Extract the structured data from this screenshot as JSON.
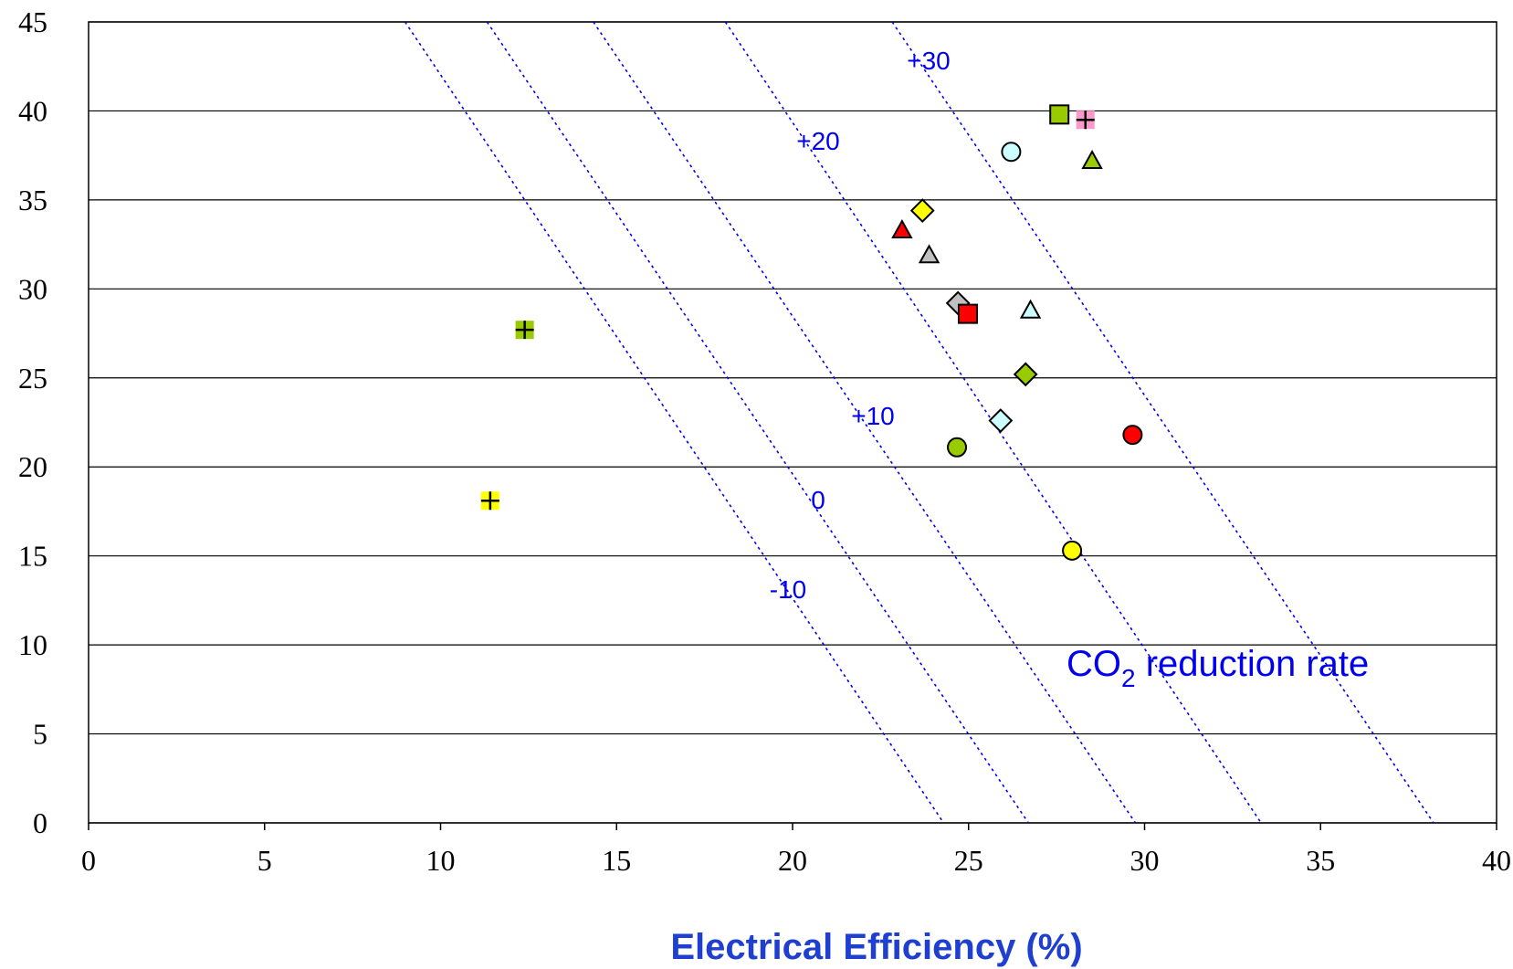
{
  "chart_data": {
    "type": "scatter",
    "x_label": "Electrical Efficiency (%)",
    "xlim": [
      0,
      40
    ],
    "xticks": [
      0,
      5,
      10,
      15,
      20,
      25,
      30,
      35,
      40
    ],
    "ylim": [
      0,
      45
    ],
    "yticks": [
      0,
      5,
      10,
      15,
      20,
      25,
      30,
      35,
      40,
      45
    ],
    "grid": true,
    "series": [
      {
        "marker": "square",
        "color": "#99cc00",
        "x": [
          27.58
        ],
        "values": [
          39.8
        ]
      },
      {
        "marker": "plus",
        "color": "#ff99cc",
        "x": [
          28.32
        ],
        "values": [
          39.5
        ]
      },
      {
        "marker": "circle",
        "color": "#ccffff",
        "x": [
          26.21
        ],
        "values": [
          37.7
        ]
      },
      {
        "marker": "triangle",
        "color": "#99cc00",
        "x": [
          28.51
        ],
        "values": [
          37.2
        ]
      },
      {
        "marker": "diamond",
        "color": "#ffff00",
        "x": [
          23.69
        ],
        "values": [
          34.4
        ]
      },
      {
        "marker": "triangle",
        "color": "#ff0000",
        "x": [
          23.11
        ],
        "values": [
          33.3
        ]
      },
      {
        "marker": "triangle",
        "color": "#c0c0c0",
        "x": [
          23.88
        ],
        "values": [
          31.9
        ]
      },
      {
        "marker": "diamond",
        "color": "#c0c0c0",
        "x": [
          24.7
        ],
        "values": [
          29.2
        ]
      },
      {
        "marker": "square",
        "color": "#ff0000",
        "x": [
          24.98
        ],
        "values": [
          28.6
        ]
      },
      {
        "marker": "triangle",
        "color": "#ccffff",
        "x": [
          26.76
        ],
        "values": [
          28.8
        ]
      },
      {
        "marker": "plus",
        "color": "#99cc00",
        "x": [
          12.39
        ],
        "values": [
          27.7
        ]
      },
      {
        "marker": "diamond",
        "color": "#99cc00",
        "x": [
          26.62
        ],
        "values": [
          25.2
        ]
      },
      {
        "marker": "diamond",
        "color": "#ccffff",
        "x": [
          25.91
        ],
        "values": [
          22.6
        ]
      },
      {
        "marker": "circle",
        "color": "#ff0000",
        "x": [
          29.66
        ],
        "values": [
          21.8
        ]
      },
      {
        "marker": "circle",
        "color": "#99cc00",
        "x": [
          24.67
        ],
        "values": [
          21.1
        ]
      },
      {
        "marker": "plus",
        "color": "#ffff00",
        "x": [
          11.41
        ],
        "values": [
          18.1
        ]
      },
      {
        "marker": "circle",
        "color": "#ffff00",
        "x": [
          27.94
        ],
        "values": [
          15.3
        ]
      }
    ],
    "isolines": [
      {
        "label": "-10",
        "color": "#0000ee",
        "x": [
          8.99,
          24.29
        ],
        "y": [
          45,
          0
        ]
      },
      {
        "label": "0",
        "color": "#0000ee",
        "x": [
          11.32,
          26.7
        ],
        "y": [
          45,
          0
        ]
      },
      {
        "label": "+10",
        "color": "#0000ee",
        "x": [
          14.34,
          29.74
        ],
        "y": [
          45,
          0
        ]
      },
      {
        "label": "+20",
        "color": "#0000ee",
        "x": [
          18.09,
          33.31
        ],
        "y": [
          45,
          0
        ]
      },
      {
        "label": "+30",
        "color": "#0000ee",
        "x": [
          22.83,
          38.21
        ],
        "y": [
          45,
          0
        ]
      }
    ],
    "annotation": {
      "text": "CO",
      "subscript": "2",
      "rest": " reduction rate"
    }
  }
}
